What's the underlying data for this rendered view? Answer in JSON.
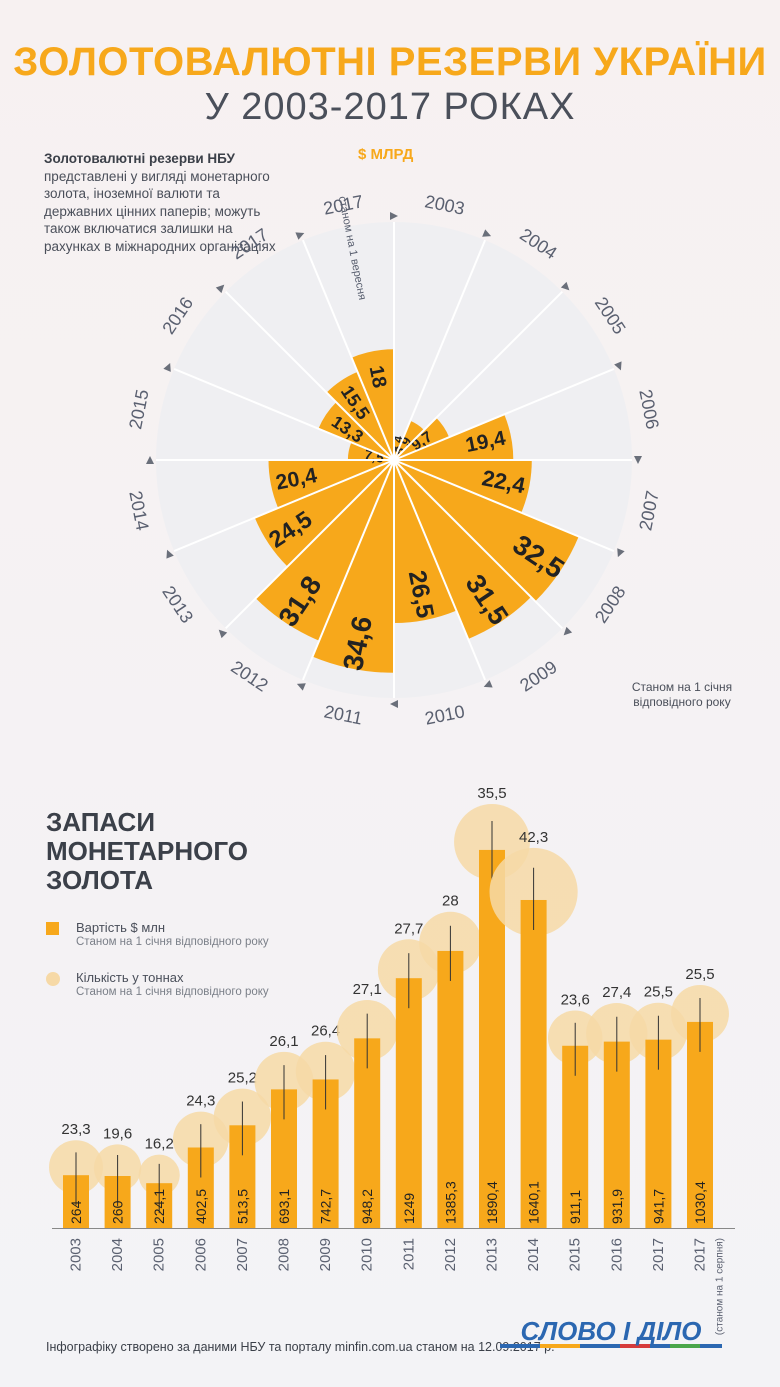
{
  "title": "ЗОЛОТОВАЛЮТНІ РЕЗЕРВИ УКРАЇНИ",
  "subtitle": "У 2003-2017 РОКАХ",
  "description": {
    "bold": "Золотовалютні резерви НБУ",
    "text": "представлені у вигляді монетарного золота, іноземної валюти та державних цінних паперів; можуть також включатися залишки на рахунках в міжнародних організаціях"
  },
  "rose_unit": "$ МЛРД",
  "rose_note": "Станом на 1 січня відповідного року",
  "rose_2017_note": "станом на 1 вересня",
  "section2_title": [
    "ЗАПАСИ",
    "МОНЕТАРНОГО",
    "ЗОЛОТА"
  ],
  "legend": {
    "value_label": "Вартість $ млн",
    "value_sub": "Станом на 1 січня відповідного року",
    "tons_label": "Кількість у тоннах",
    "tons_sub": "Станом на 1 січня відповідного року"
  },
  "bar_2017b_note": "(станом на 1 серпня)",
  "footer": "Інфографіку створено за даними НБУ та порталу minfin.com.ua станом на 12.09.2017 р.",
  "logo_text": "СЛОВО І ДІЛО",
  "colors": {
    "accent": "#f7a81b",
    "bubble": "#f6d9a6",
    "text": "#4a4f5a"
  },
  "chart_data": [
    {
      "type": "polar-bar",
      "title": "ЗОЛОТОВАЛЮТНІ РЕЗЕРВИ УКРАЇНИ У 2003-2017 РОКАХ",
      "unit": "$ МЛРД",
      "categories": [
        "2003",
        "2004",
        "2005",
        "2006",
        "2007",
        "2008",
        "2009",
        "2010",
        "2011",
        "2012",
        "2013",
        "2014",
        "2015",
        "2016",
        "2017",
        "2017"
      ],
      "values": [
        3.4,
        6.9,
        9.7,
        19.4,
        22.4,
        32.5,
        31.5,
        26.5,
        34.6,
        31.8,
        24.5,
        20.4,
        7.5,
        13.3,
        15.5,
        18
      ],
      "value_labels": [
        "3,4",
        "6,9",
        "9,7",
        "19,4",
        "22,4",
        "32,5",
        "31,5",
        "26,5",
        "34,6",
        "31,8",
        "24,5",
        "20,4",
        "7,5",
        "13,3",
        "15,5",
        "18"
      ]
    },
    {
      "type": "bar",
      "title": "ЗАПАСИ МОНЕТАРНОГО ЗОЛОТА",
      "categories": [
        "2003",
        "2004",
        "2005",
        "2006",
        "2007",
        "2008",
        "2009",
        "2010",
        "2011",
        "2012",
        "2013",
        "2014",
        "2015",
        "2016",
        "2017",
        "2017"
      ],
      "series": [
        {
          "name": "Вартість $ млн",
          "values": [
            264,
            260,
            224.1,
            402.5,
            513.5,
            693.1,
            742.7,
            948.2,
            1249,
            1385.3,
            1890.4,
            1640.1,
            911.1,
            931.9,
            941.7,
            1030.4
          ],
          "labels": [
            "264",
            "260",
            "224,1",
            "402,5",
            "513,5",
            "693,1",
            "742,7",
            "948,2",
            "1249",
            "1385,3",
            "1890,4",
            "1640,1",
            "911,1",
            "931,9",
            "941,7",
            "1030,4"
          ]
        },
        {
          "name": "Кількість у тоннах",
          "values": [
            23.3,
            19.6,
            16.2,
            24.3,
            25.2,
            26.1,
            26.4,
            27.1,
            27.7,
            28,
            35.5,
            42.3,
            23.6,
            27.4,
            25.5,
            25.5
          ],
          "labels": [
            "23,3",
            "19,6",
            "16,2",
            "24,3",
            "25,2",
            "26,1",
            "26,4",
            "27,1",
            "27,7",
            "28",
            "35,5",
            "42,3",
            "23,6",
            "27,4",
            "25,5",
            "25,5"
          ]
        }
      ]
    }
  ]
}
